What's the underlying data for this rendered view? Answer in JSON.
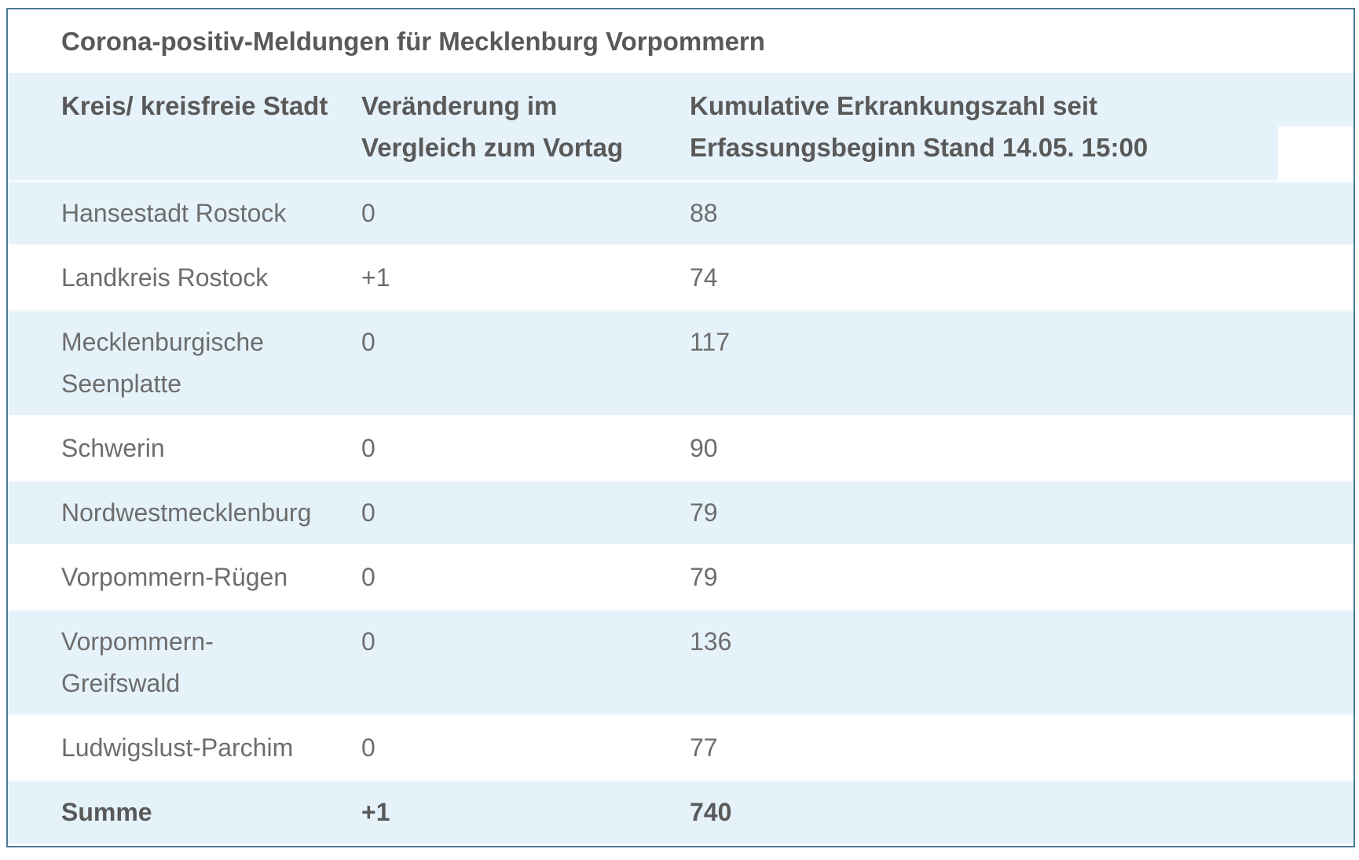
{
  "title": "Corona-positiv-Meldungen für Mecklenburg Vorpommern",
  "header": {
    "col1": "Kreis/ kreisfreie Stadt",
    "col2": "Veränderung im\nVergleich zum Vortag",
    "col3": "Kumulative Erkrankungszahl seit\nErfassungsbeginn Stand 14.05. 15:00"
  },
  "rows": [
    {
      "name": "Hansestadt Rostock",
      "change": "0",
      "cumulative": "88"
    },
    {
      "name": "Landkreis Rostock",
      "change": "+1",
      "cumulative": "74"
    },
    {
      "name": "Mecklenburgische\nSeenplatte",
      "change": "0",
      "cumulative": "117"
    },
    {
      "name": "Schwerin",
      "change": "0",
      "cumulative": "90"
    },
    {
      "name": "Nordwestmecklenburg",
      "change": "0",
      "cumulative": "79"
    },
    {
      "name": "Vorpommern-Rügen",
      "change": "0",
      "cumulative": "79"
    },
    {
      "name": "Vorpommern-\nGreifswald",
      "change": "0",
      "cumulative": "136"
    },
    {
      "name": "Ludwigslust-Parchim",
      "change": "0",
      "cumulative": "77"
    }
  ],
  "summary": {
    "name": "Summe",
    "change": "+1",
    "cumulative": "740"
  },
  "chart_data": {
    "type": "table",
    "title": "Corona-positiv-Meldungen für Mecklenburg Vorpommern",
    "columns": [
      "Kreis/ kreisfreie Stadt",
      "Veränderung im Vergleich zum Vortag",
      "Kumulative Erkrankungszahl seit Erfassungsbeginn Stand 14.05. 15:00"
    ],
    "rows": [
      [
        "Hansestadt Rostock",
        "0",
        88
      ],
      [
        "Landkreis Rostock",
        "+1",
        74
      ],
      [
        "Mecklenburgische Seenplatte",
        "0",
        117
      ],
      [
        "Schwerin",
        "0",
        90
      ],
      [
        "Nordwestmecklenburg",
        "0",
        79
      ],
      [
        "Vorpommern-Rügen",
        "0",
        79
      ],
      [
        "Vorpommern-Greifswald",
        "0",
        136
      ],
      [
        "Ludwigslust-Parchim",
        "0",
        77
      ]
    ],
    "summary_row": [
      "Summe",
      "+1",
      740
    ]
  },
  "colors": {
    "row_blue": "#e6f2fa",
    "border": "#4a7895",
    "text": "#6d6d6d",
    "text_bold": "#595959"
  }
}
